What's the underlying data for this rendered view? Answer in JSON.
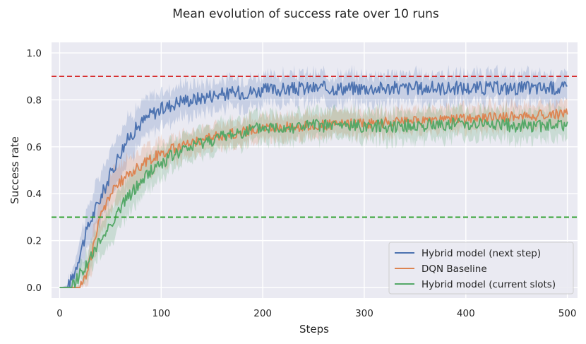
{
  "chart_data": {
    "type": "line",
    "title": "Mean evolution of success rate over 10 runs",
    "xlabel": "Steps",
    "ylabel": "Success rate",
    "xlim": [
      -8,
      510
    ],
    "ylim": [
      -0.045,
      1.045
    ],
    "xticks": [
      0,
      100,
      200,
      300,
      400,
      500
    ],
    "yticks": [
      0.0,
      0.2,
      0.4,
      0.6,
      0.8,
      1.0
    ],
    "xtick_labels": [
      "0",
      "100",
      "200",
      "300",
      "400",
      "500"
    ],
    "ytick_labels": [
      "0.0",
      "0.2",
      "0.4",
      "0.6",
      "0.8",
      "1.0"
    ],
    "grid": true,
    "legend_position": "lower-right",
    "reference_lines": [
      {
        "y": 0.9,
        "color": "#d62728",
        "style": "dashed"
      },
      {
        "y": 0.3,
        "color": "#2ca02c",
        "style": "dashed"
      }
    ],
    "series": [
      {
        "name": "Hybrid model (next step)",
        "color": "#4c72b0",
        "x": [
          0,
          8,
          15,
          20,
          30,
          40,
          50,
          60,
          70,
          80,
          90,
          100,
          110,
          120,
          130,
          140,
          150,
          175,
          200,
          250,
          300,
          350,
          400,
          450,
          500
        ],
        "values": [
          0.0,
          0.0,
          0.07,
          0.15,
          0.28,
          0.38,
          0.48,
          0.58,
          0.65,
          0.7,
          0.74,
          0.76,
          0.78,
          0.8,
          0.8,
          0.81,
          0.82,
          0.83,
          0.84,
          0.85,
          0.85,
          0.85,
          0.85,
          0.85,
          0.85
        ],
        "band": [
          0.0,
          0.01,
          0.05,
          0.07,
          0.09,
          0.1,
          0.1,
          0.1,
          0.09,
          0.08,
          0.08,
          0.07,
          0.07,
          0.07,
          0.07,
          0.06,
          0.06,
          0.06,
          0.06,
          0.06,
          0.06,
          0.06,
          0.06,
          0.06,
          0.06
        ],
        "noise": 0.03
      },
      {
        "name": "DQN Baseline",
        "color": "#dd8452",
        "x": [
          0,
          20,
          25,
          30,
          40,
          50,
          60,
          70,
          80,
          90,
          100,
          110,
          120,
          130,
          140,
          150,
          175,
          200,
          250,
          300,
          350,
          400,
          450,
          500
        ],
        "values": [
          0.0,
          0.0,
          0.04,
          0.12,
          0.3,
          0.4,
          0.45,
          0.49,
          0.52,
          0.55,
          0.57,
          0.59,
          0.6,
          0.62,
          0.63,
          0.64,
          0.66,
          0.68,
          0.69,
          0.7,
          0.71,
          0.72,
          0.73,
          0.74
        ],
        "band": [
          0.0,
          0.01,
          0.04,
          0.07,
          0.08,
          0.08,
          0.08,
          0.07,
          0.07,
          0.06,
          0.06,
          0.05,
          0.05,
          0.05,
          0.05,
          0.05,
          0.05,
          0.05,
          0.05,
          0.05,
          0.05,
          0.05,
          0.05,
          0.05
        ],
        "noise": 0.022
      },
      {
        "name": "Hybrid model (current slots)",
        "color": "#55a868",
        "x": [
          0,
          12,
          20,
          30,
          40,
          50,
          60,
          70,
          80,
          90,
          100,
          110,
          120,
          130,
          140,
          150,
          175,
          200,
          250,
          300,
          350,
          400,
          450,
          500
        ],
        "values": [
          0.0,
          0.0,
          0.06,
          0.12,
          0.2,
          0.27,
          0.34,
          0.4,
          0.45,
          0.5,
          0.53,
          0.56,
          0.58,
          0.6,
          0.62,
          0.63,
          0.66,
          0.68,
          0.69,
          0.69,
          0.69,
          0.7,
          0.69,
          0.69
        ],
        "band": [
          0.0,
          0.01,
          0.04,
          0.06,
          0.07,
          0.08,
          0.08,
          0.08,
          0.07,
          0.07,
          0.07,
          0.06,
          0.06,
          0.06,
          0.06,
          0.06,
          0.06,
          0.06,
          0.06,
          0.06,
          0.06,
          0.06,
          0.06,
          0.06
        ],
        "noise": 0.028
      }
    ]
  }
}
